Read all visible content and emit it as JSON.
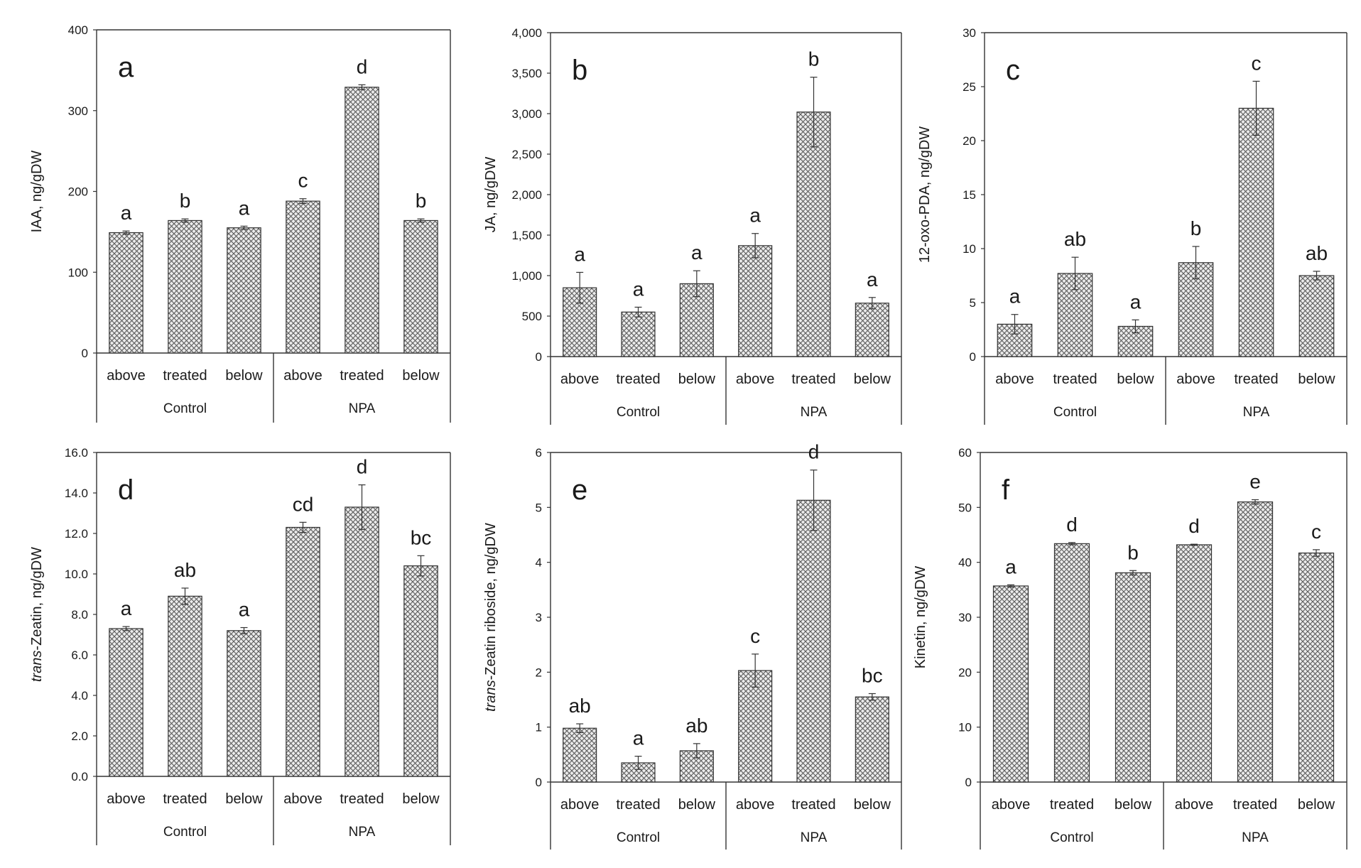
{
  "chart_data": [
    {
      "type": "bar",
      "panel_label": "a",
      "ylabel": "IAA, ng/gDW",
      "ylabel_italic_prefix": "",
      "groups": [
        "Control",
        "NPA"
      ],
      "categories": [
        "above",
        "treated",
        "below",
        "above",
        "treated",
        "below"
      ],
      "values": [
        149,
        164,
        155,
        188,
        329,
        164
      ],
      "errors": [
        2,
        2,
        2,
        3,
        3,
        2
      ],
      "significance": [
        "a",
        "b",
        "a",
        "c",
        "d",
        "b"
      ],
      "ylim": [
        0,
        400
      ],
      "yticks": [
        0,
        100,
        200,
        300,
        400
      ],
      "ytick_labels": [
        "0",
        "100",
        "200",
        "300",
        "400"
      ],
      "bar_color": "#b9b9b9"
    },
    {
      "type": "bar",
      "panel_label": "b",
      "ylabel": "JA, ng/gDW",
      "ylabel_italic_prefix": "",
      "groups": [
        "Control",
        "NPA"
      ],
      "categories": [
        "above",
        "treated",
        "below",
        "above",
        "treated",
        "below"
      ],
      "values": [
        850,
        550,
        900,
        1370,
        3020,
        660
      ],
      "errors": [
        190,
        60,
        160,
        150,
        430,
        70
      ],
      "significance": [
        "a",
        "a",
        "a",
        "a",
        "b",
        "a"
      ],
      "ylim": [
        0,
        4000
      ],
      "yticks": [
        0,
        500,
        1000,
        1500,
        2000,
        2500,
        3000,
        3500,
        4000
      ],
      "ytick_labels": [
        "0",
        "500",
        "1,000",
        "1,500",
        "2,000",
        "2,500",
        "3,000",
        "3,500",
        "4,000"
      ],
      "bar_color": "#b9b9b9"
    },
    {
      "type": "bar",
      "panel_label": "c",
      "ylabel": "12-oxo-PDA, ng/gDW",
      "ylabel_italic_prefix": "",
      "groups": [
        "Control",
        "NPA"
      ],
      "categories": [
        "above",
        "treated",
        "below",
        "above",
        "treated",
        "below"
      ],
      "values": [
        3.0,
        7.7,
        2.8,
        8.7,
        23.0,
        7.5
      ],
      "errors": [
        0.9,
        1.5,
        0.6,
        1.5,
        2.5,
        0.4
      ],
      "significance": [
        "a",
        "ab",
        "a",
        "b",
        "c",
        "ab"
      ],
      "ylim": [
        0,
        30
      ],
      "yticks": [
        0,
        5,
        10,
        15,
        20,
        25,
        30
      ],
      "ytick_labels": [
        "0",
        "5",
        "10",
        "15",
        "20",
        "25",
        "30"
      ],
      "bar_color": "#b9b9b9"
    },
    {
      "type": "bar",
      "panel_label": "d",
      "ylabel": "-Zeatin, ng/gDW",
      "ylabel_italic_prefix": "trans",
      "groups": [
        "Control",
        "NPA"
      ],
      "categories": [
        "above",
        "treated",
        "below",
        "above",
        "treated",
        "below"
      ],
      "values": [
        7.3,
        8.9,
        7.2,
        12.3,
        13.3,
        10.4
      ],
      "errors": [
        0.1,
        0.4,
        0.15,
        0.25,
        1.1,
        0.5
      ],
      "significance": [
        "a",
        "ab",
        "a",
        "cd",
        "d",
        "bc"
      ],
      "ylim": [
        0,
        16
      ],
      "yticks": [
        0,
        2,
        4,
        6,
        8,
        10,
        12,
        14,
        16
      ],
      "ytick_labels": [
        "0.0",
        "2.0",
        "4.0",
        "6.0",
        "8.0",
        "10.0",
        "12.0",
        "14.0",
        "16.0"
      ],
      "bar_color": "#b9b9b9"
    },
    {
      "type": "bar",
      "panel_label": "e",
      "ylabel": "-Zeatin riboside, ng/gDW",
      "ylabel_italic_prefix": "trans",
      "groups": [
        "Control",
        "NPA"
      ],
      "categories": [
        "above",
        "treated",
        "below",
        "above",
        "treated",
        "below"
      ],
      "values": [
        0.98,
        0.35,
        0.57,
        2.03,
        5.13,
        1.55
      ],
      "errors": [
        0.08,
        0.12,
        0.13,
        0.3,
        0.55,
        0.06
      ],
      "significance": [
        "ab",
        "a",
        "ab",
        "c",
        "d",
        "bc"
      ],
      "ylim": [
        0,
        6
      ],
      "yticks": [
        0,
        1,
        2,
        3,
        4,
        5,
        6
      ],
      "ytick_labels": [
        "0",
        "1",
        "2",
        "3",
        "4",
        "5",
        "6"
      ],
      "bar_color": "#b9b9b9"
    },
    {
      "type": "bar",
      "panel_label": "f",
      "ylabel": "Kinetin, ng/gDW",
      "ylabel_italic_prefix": "",
      "groups": [
        "Control",
        "NPA"
      ],
      "categories": [
        "above",
        "treated",
        "below",
        "above",
        "treated",
        "below"
      ],
      "values": [
        35.7,
        43.4,
        38.1,
        43.2,
        51.0,
        41.7
      ],
      "errors": [
        0.2,
        0.2,
        0.4,
        0.1,
        0.4,
        0.6
      ],
      "significance": [
        "a",
        "d",
        "b",
        "d",
        "e",
        "c"
      ],
      "ylim": [
        0,
        60
      ],
      "yticks": [
        0,
        10,
        20,
        30,
        40,
        50,
        60
      ],
      "ytick_labels": [
        "0",
        "10",
        "20",
        "30",
        "40",
        "50",
        "60"
      ],
      "bar_color": "#b9b9b9"
    }
  ]
}
